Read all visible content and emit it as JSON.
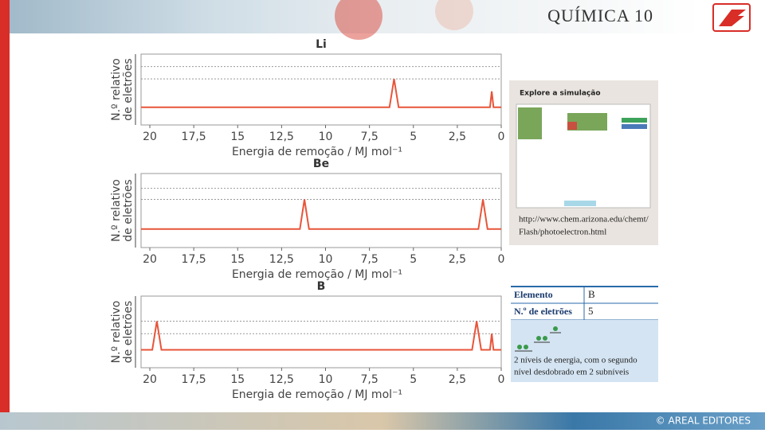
{
  "header": {
    "title": "QUÍMICA 10"
  },
  "chart_data": [
    {
      "type": "line",
      "title": "Li",
      "x_label": "Energia de remoção / MJ mol⁻¹",
      "y_label": [
        "N.º relativo",
        "de eletrões"
      ],
      "x": [
        20.5,
        6.36,
        6.1,
        5.84,
        0.64,
        0.54,
        0.44,
        0
      ],
      "values": [
        0,
        0,
        1.6,
        0,
        0,
        0.9,
        0,
        0
      ],
      "color": "#e8553a",
      "xlim": [
        20.5,
        0
      ],
      "ylim": [
        -1,
        3
      ],
      "xticks": [
        20,
        {
          "value": 17.5,
          "label": "17,5"
        },
        15,
        {
          "value": 12.5,
          "label": "12,5"
        },
        10,
        {
          "value": 7.5,
          "label": "7,5"
        },
        5,
        {
          "value": 2.5,
          "label": "2,5"
        },
        0
      ],
      "yticks": [
        1.6,
        2.3
      ],
      "grid": true
    },
    {
      "type": "line",
      "title": "Be",
      "x_label": "Energia de remoção / MJ mol⁻¹",
      "y_label": [
        "N.º relativo",
        "de eletrões"
      ],
      "x": [
        20.5,
        11.46,
        11.2,
        10.94,
        1.3,
        1.04,
        0.78,
        0
      ],
      "values": [
        0,
        0,
        1.6,
        0,
        0,
        1.6,
        0,
        0
      ],
      "color": "#e8553a",
      "xlim": [
        20.5,
        0
      ],
      "ylim": [
        -1,
        3
      ],
      "xticks": [
        20,
        {
          "value": 17.5,
          "label": "17,5"
        },
        15,
        {
          "value": 12.5,
          "label": "12,5"
        },
        10,
        {
          "value": 7.5,
          "label": "7,5"
        },
        5,
        {
          "value": 2.5,
          "label": "2,5"
        },
        0
      ],
      "yticks": [
        1.6,
        2.2
      ],
      "grid": true
    },
    {
      "type": "line",
      "title": "B",
      "x_label": "Energia de remoção / MJ mol⁻¹",
      "y_label": [
        "N.º relativo",
        "de eletrões"
      ],
      "x": [
        20.5,
        19.86,
        19.6,
        19.34,
        1.66,
        1.4,
        1.14,
        0.64,
        0.54,
        0.44,
        0
      ],
      "values": [
        0,
        0,
        1.6,
        0,
        0,
        1.6,
        0,
        0,
        0.9,
        0,
        0
      ],
      "color": "#e8553a",
      "xlim": [
        20.5,
        0
      ],
      "ylim": [
        -1,
        3
      ],
      "xticks": [
        20,
        {
          "value": 17.5,
          "label": "17,5"
        },
        15,
        {
          "value": 12.5,
          "label": "12,5"
        },
        10,
        {
          "value": 7.5,
          "label": "7,5"
        },
        5,
        {
          "value": 2.5,
          "label": "2,5"
        },
        0
      ],
      "yticks": [
        0.9,
        1.6
      ],
      "grid": true
    }
  ],
  "simulation": {
    "title": "Explore a simulação",
    "url": [
      "http://www.chem.arizona.edu/chemt/",
      "Flash/photoelectron.html"
    ]
  },
  "table": {
    "rows": [
      [
        "Elemento",
        "B"
      ],
      [
        "N.º de eletrões",
        "5"
      ]
    ],
    "note": [
      "2 níveis de energia, com o segundo",
      "nível desdobrado em 2 subníveis"
    ]
  },
  "footer": {
    "copyright": "© AREAL EDITORES"
  }
}
